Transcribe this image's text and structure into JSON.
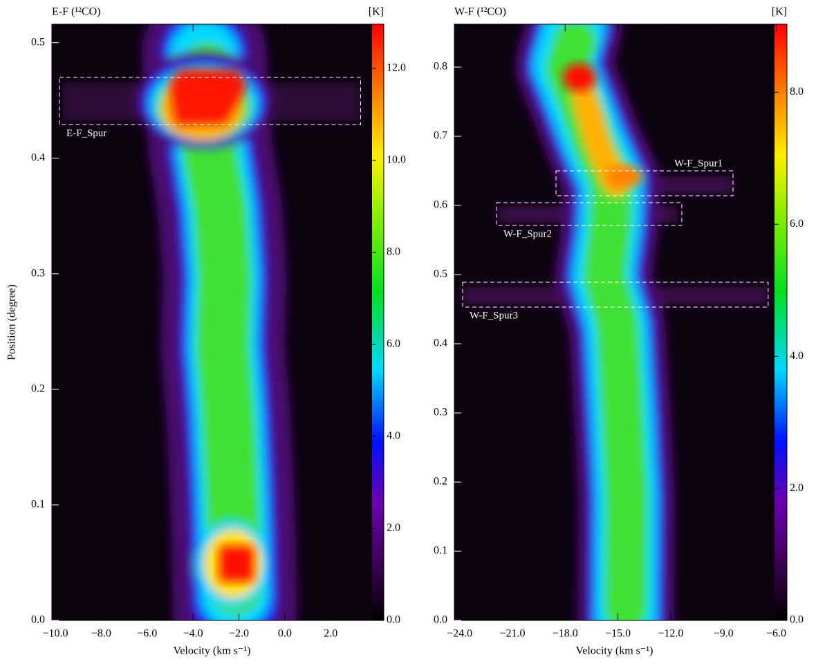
{
  "chart_data": [
    {
      "type": "heatmap",
      "title": "E-F (¹²CO)",
      "colorbar_label": "[K]",
      "x_label": "Velocity (km s⁻¹)",
      "y_label": "Position (degree)",
      "xlim": [
        -10.15,
        3.8
      ],
      "ylim": [
        0,
        0.516
      ],
      "clim": [
        0,
        12.96
      ],
      "xticks": [
        {
          "value": -10,
          "label": "−10.0"
        },
        {
          "value": -8,
          "label": "−8.0"
        },
        {
          "value": -6,
          "label": "−6.0"
        },
        {
          "value": -4,
          "label": "−4.0"
        },
        {
          "value": -2,
          "label": "−2.0"
        },
        {
          "value": 0,
          "label": "0.0"
        },
        {
          "value": 2,
          "label": "2.0"
        }
      ],
      "yticks": [
        {
          "value": 0,
          "label": "0.0"
        },
        0.1,
        0.2,
        0.3,
        0.4,
        0.5
      ],
      "cticks": [
        {
          "value": 0,
          "label": "0.0"
        },
        {
          "value": 2,
          "label": "2.0"
        },
        {
          "value": 4,
          "label": "4.0"
        },
        {
          "value": 6,
          "label": "6.0"
        },
        {
          "value": 8,
          "label": "8.0"
        },
        {
          "value": 10,
          "label": "10.0"
        },
        {
          "value": 12,
          "label": "12.0"
        }
      ],
      "annotations": [
        {
          "text": "E-F_Spur",
          "x": [
            -9.82,
            3.3
          ],
          "y": [
            0.429,
            0.47
          ]
        }
      ]
    },
    {
      "type": "heatmap",
      "title": "W-F (¹²CO)",
      "colorbar_label": "[K]",
      "x_label": "Velocity (km s⁻¹)",
      "xlim": [
        -24.3,
        -6.1
      ],
      "ylim": [
        0,
        0.862
      ],
      "clim": [
        0,
        9.03
      ],
      "xticks": [
        {
          "value": -24,
          "label": "−24.0"
        },
        {
          "value": -21,
          "label": "−21.0"
        },
        {
          "value": -18,
          "label": "−18.0"
        },
        {
          "value": -15,
          "label": "−15.0"
        },
        {
          "value": -12,
          "label": "−12.0"
        },
        {
          "value": -9,
          "label": "−9.0"
        },
        {
          "value": -6,
          "label": "−6.0"
        }
      ],
      "yticks": [
        {
          "value": 0,
          "label": "0.0"
        },
        0.1,
        0.2,
        0.3,
        0.4,
        0.5,
        0.6,
        0.7,
        0.8
      ],
      "cticks": [
        {
          "value": 0,
          "label": "0.0"
        },
        {
          "value": 2,
          "label": "2.0"
        },
        {
          "value": 4,
          "label": "4.0"
        },
        {
          "value": 6,
          "label": "6.0"
        },
        {
          "value": 8,
          "label": "8.0"
        }
      ],
      "annotations": [
        {
          "text": "W-F_Spur1",
          "x": [
            -18.52,
            -8.46
          ],
          "y": [
            0.614,
            0.65
          ]
        },
        {
          "text": "W-F_Spur2",
          "x": [
            -21.9,
            -11.37
          ],
          "y": [
            0.571,
            0.604
          ]
        },
        {
          "text": "W-F_Spur3",
          "x": [
            -23.83,
            -6.46
          ],
          "y": [
            0.453,
            0.489
          ]
        }
      ]
    }
  ]
}
